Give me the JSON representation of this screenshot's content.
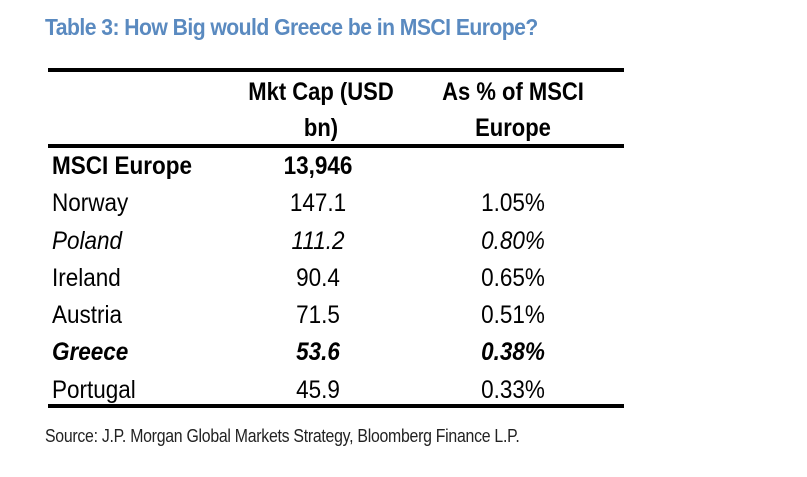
{
  "title": "Table 3: How Big would Greece be in MSCI Europe?",
  "table": {
    "headers": [
      "",
      "Mkt Cap (USD bn)",
      "As % of MSCI Europe"
    ],
    "header_lines": {
      "col1": [
        "Mkt Cap (USD",
        "bn)"
      ],
      "col2": [
        "As % of MSCI",
        "Europe"
      ]
    },
    "rows": [
      {
        "name": "MSCI Europe",
        "mkt_cap": "13,946",
        "pct": "",
        "style": "bold"
      },
      {
        "name": "Norway",
        "mkt_cap": "147.1",
        "pct": "1.05%",
        "style": "normal"
      },
      {
        "name": "Poland",
        "mkt_cap": "111.2",
        "pct": "0.80%",
        "style": "italic"
      },
      {
        "name": "Ireland",
        "mkt_cap": "90.4",
        "pct": "0.65%",
        "style": "normal"
      },
      {
        "name": "Austria",
        "mkt_cap": "71.5",
        "pct": "0.51%",
        "style": "normal"
      },
      {
        "name": "Greece",
        "mkt_cap": "53.6",
        "pct": "0.38%",
        "style": "bold-italic"
      },
      {
        "name": "Portugal",
        "mkt_cap": "45.9",
        "pct": "0.33%",
        "style": "normal"
      }
    ]
  },
  "source": "Source: J.P. Morgan Global Markets Strategy, Bloomberg Finance L.P.",
  "colors": {
    "title": "#5a8ac0",
    "text": "#000000",
    "rule": "#000000"
  }
}
